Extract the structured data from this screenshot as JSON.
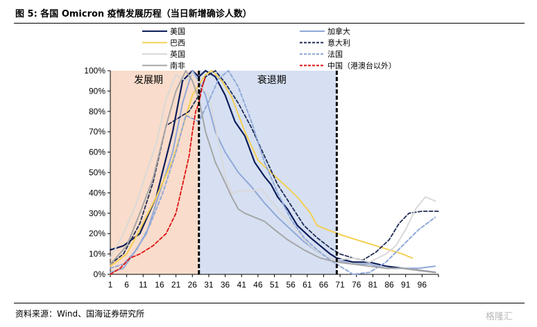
{
  "header": {
    "title": "图 5: 各国 Omicron 疫情发展历程（当日新增确诊人数）"
  },
  "footer": {
    "source": "资料来源：Wind、国海证券研究所",
    "watermark": "格隆汇"
  },
  "colors": {
    "growth_bg": "#f9dccb",
    "decline_bg": "#d6e0f2",
    "us": "#0d1d5a",
    "canada": "#8fa8d8",
    "brazil": "#f5cf52",
    "italy": "#1e2b55",
    "uk": "#d9d9d9",
    "france": "#8fa8d8",
    "south_africa": "#a6a6a6",
    "china": "#e01010"
  },
  "chart_data": {
    "type": "line",
    "title": "",
    "xlabel": "",
    "ylabel": "",
    "xlim": [
      1,
      101
    ],
    "ylim": [
      0,
      100
    ],
    "x_ticks": [
      1,
      6,
      11,
      16,
      21,
      26,
      31,
      36,
      41,
      46,
      51,
      56,
      61,
      66,
      71,
      76,
      81,
      86,
      91,
      96
    ],
    "y_ticks": [
      "0%",
      "10%",
      "20%",
      "30%",
      "40%",
      "50%",
      "60%",
      "70%",
      "80%",
      "90%",
      "100%"
    ],
    "phases": [
      {
        "label": "发展期",
        "from": 1,
        "to": 28
      },
      {
        "label": "衰退期",
        "from": 28,
        "to": 70
      }
    ],
    "dividers": [
      28,
      70
    ],
    "legend_position": "top",
    "series": [
      {
        "name": "美国",
        "key": "us",
        "dash": "solid",
        "points": [
          [
            1,
            12
          ],
          [
            5,
            14
          ],
          [
            10,
            20
          ],
          [
            15,
            38
          ],
          [
            20,
            70
          ],
          [
            23,
            95
          ],
          [
            26,
            100
          ],
          [
            28,
            97
          ],
          [
            30,
            100
          ],
          [
            33,
            97
          ],
          [
            36,
            88
          ],
          [
            39,
            75
          ],
          [
            42,
            68
          ],
          [
            45,
            55
          ],
          [
            48,
            48
          ],
          [
            50,
            44
          ],
          [
            52,
            38
          ],
          [
            55,
            32
          ],
          [
            58,
            24
          ],
          [
            62,
            18
          ],
          [
            65,
            14
          ],
          [
            68,
            10
          ],
          [
            70,
            8
          ],
          [
            75,
            6
          ],
          [
            80,
            6
          ],
          [
            85,
            4
          ],
          [
            90,
            3
          ],
          [
            95,
            2
          ],
          [
            100,
            1
          ]
        ]
      },
      {
        "name": "加拿大",
        "key": "canada",
        "dash": "solid",
        "points": [
          [
            1,
            1
          ],
          [
            5,
            3
          ],
          [
            8,
            10
          ],
          [
            12,
            20
          ],
          [
            16,
            40
          ],
          [
            20,
            60
          ],
          [
            23,
            84
          ],
          [
            26,
            100
          ],
          [
            28,
            95
          ],
          [
            30,
            88
          ],
          [
            33,
            70
          ],
          [
            36,
            60
          ],
          [
            40,
            50
          ],
          [
            44,
            43
          ],
          [
            48,
            35
          ],
          [
            52,
            28
          ],
          [
            56,
            22
          ],
          [
            60,
            16
          ],
          [
            65,
            10
          ],
          [
            70,
            7
          ],
          [
            75,
            5
          ],
          [
            80,
            5
          ],
          [
            85,
            3
          ],
          [
            90,
            3
          ],
          [
            95,
            3
          ],
          [
            100,
            4
          ]
        ]
      },
      {
        "name": "巴西",
        "key": "brazil",
        "dash": "solid",
        "points": [
          [
            1,
            4
          ],
          [
            6,
            10
          ],
          [
            10,
            22
          ],
          [
            15,
            38
          ],
          [
            20,
            56
          ],
          [
            23,
            72
          ],
          [
            26,
            88
          ],
          [
            28,
            93
          ],
          [
            30,
            98
          ],
          [
            32,
            100
          ],
          [
            35,
            95
          ],
          [
            38,
            87
          ],
          [
            42,
            70
          ],
          [
            46,
            56
          ],
          [
            50,
            50
          ],
          [
            54,
            44
          ],
          [
            58,
            38
          ],
          [
            62,
            30
          ],
          [
            64,
            24
          ],
          [
            67,
            22
          ],
          [
            72,
            19
          ],
          [
            78,
            16
          ],
          [
            82,
            14
          ],
          [
            86,
            12
          ],
          [
            90,
            10
          ],
          [
            93,
            8
          ]
        ]
      },
      {
        "name": "意大利",
        "key": "italy",
        "dash": "dashed",
        "points": [
          [
            1,
            5
          ],
          [
            5,
            10
          ],
          [
            10,
            25
          ],
          [
            14,
            45
          ],
          [
            18,
            73
          ],
          [
            22,
            77
          ],
          [
            25,
            80
          ],
          [
            28,
            88
          ],
          [
            30,
            97
          ],
          [
            33,
            100
          ],
          [
            36,
            94
          ],
          [
            40,
            84
          ],
          [
            44,
            72
          ],
          [
            48,
            58
          ],
          [
            52,
            44
          ],
          [
            56,
            34
          ],
          [
            60,
            24
          ],
          [
            64,
            18
          ],
          [
            68,
            13
          ],
          [
            71,
            10
          ],
          [
            75,
            8
          ],
          [
            78,
            7
          ],
          [
            82,
            11
          ],
          [
            86,
            17
          ],
          [
            89,
            25
          ],
          [
            92,
            30
          ],
          [
            96,
            31
          ],
          [
            101,
            31
          ]
        ]
      },
      {
        "name": "英国",
        "key": "uk",
        "dash": "solid",
        "points": [
          [
            1,
            8
          ],
          [
            5,
            20
          ],
          [
            9,
            35
          ],
          [
            12,
            50
          ],
          [
            15,
            64
          ],
          [
            18,
            86
          ],
          [
            21,
            98
          ],
          [
            24,
            95
          ],
          [
            26,
            99
          ],
          [
            28,
            93
          ],
          [
            31,
            88
          ],
          [
            34,
            65
          ],
          [
            36,
            48
          ],
          [
            38,
            40
          ],
          [
            41,
            41
          ],
          [
            44,
            41
          ],
          [
            47,
            42
          ],
          [
            50,
            36
          ],
          [
            53,
            30
          ],
          [
            56,
            25
          ],
          [
            59,
            19
          ],
          [
            62,
            14
          ],
          [
            65,
            10
          ],
          [
            70,
            7
          ],
          [
            75,
            8
          ],
          [
            80,
            6
          ],
          [
            85,
            10
          ],
          [
            88,
            14
          ],
          [
            91,
            22
          ],
          [
            94,
            32
          ],
          [
            97,
            38
          ],
          [
            100,
            36
          ]
        ]
      },
      {
        "name": "法国",
        "key": "france",
        "dash": "dashed",
        "points": [
          [
            1,
            3
          ],
          [
            5,
            5
          ],
          [
            9,
            12
          ],
          [
            13,
            24
          ],
          [
            17,
            40
          ],
          [
            21,
            60
          ],
          [
            24,
            78
          ],
          [
            28,
            75
          ],
          [
            31,
            85
          ],
          [
            34,
            96
          ],
          [
            37,
            100
          ],
          [
            40,
            92
          ],
          [
            44,
            75
          ],
          [
            48,
            55
          ],
          [
            52,
            40
          ],
          [
            56,
            27
          ],
          [
            60,
            18
          ],
          [
            64,
            12
          ],
          [
            68,
            7
          ],
          [
            72,
            3
          ],
          [
            75,
            0
          ],
          [
            80,
            1
          ],
          [
            85,
            6
          ],
          [
            90,
            14
          ],
          [
            95,
            22
          ],
          [
            100,
            28
          ]
        ]
      },
      {
        "name": "南非",
        "key": "south_africa",
        "dash": "solid",
        "points": [
          [
            1,
            5
          ],
          [
            6,
            14
          ],
          [
            10,
            30
          ],
          [
            14,
            47
          ],
          [
            18,
            73
          ],
          [
            21,
            90
          ],
          [
            24,
            100
          ],
          [
            26,
            95
          ],
          [
            28,
            86
          ],
          [
            30,
            70
          ],
          [
            33,
            55
          ],
          [
            36,
            45
          ],
          [
            38,
            38
          ],
          [
            40,
            32
          ],
          [
            42,
            30
          ],
          [
            45,
            28
          ],
          [
            48,
            26
          ],
          [
            51,
            22
          ],
          [
            55,
            17
          ],
          [
            60,
            12
          ],
          [
            65,
            8
          ],
          [
            70,
            6
          ],
          [
            75,
            5
          ],
          [
            80,
            4
          ],
          [
            85,
            3
          ],
          [
            90,
            3
          ],
          [
            95,
            2
          ],
          [
            100,
            1
          ]
        ]
      },
      {
        "name": "中国（港澳台以外）",
        "key": "china",
        "dash": "dashed",
        "points": [
          [
            1,
            0
          ],
          [
            4,
            3
          ],
          [
            7,
            8
          ],
          [
            10,
            10
          ],
          [
            14,
            14
          ],
          [
            18,
            20
          ],
          [
            21,
            30
          ],
          [
            23,
            44
          ],
          [
            25,
            58
          ],
          [
            26,
            70
          ],
          [
            27,
            80
          ],
          [
            28,
            84
          ],
          [
            29,
            92
          ],
          [
            30,
            97
          ]
        ]
      }
    ]
  }
}
